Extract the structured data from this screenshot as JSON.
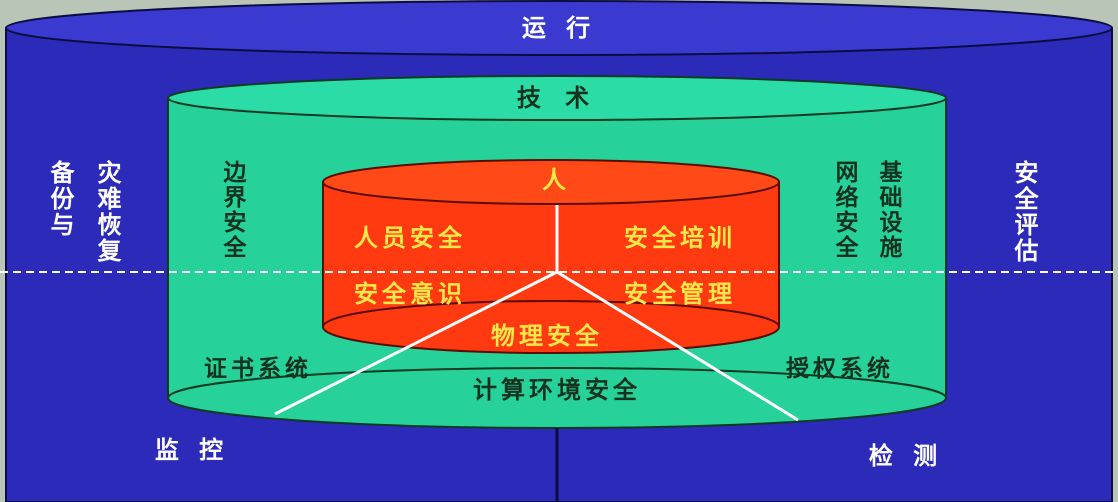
{
  "colors": {
    "outer_fill": "#2c2ab8",
    "outer_top": "#3a3ad0",
    "middle_fill": "#26d29a",
    "middle_top": "#2cdca6",
    "inner_fill": "#ff3a10",
    "inner_top": "#ff4a18",
    "line": "#ffffff",
    "text_dark": "#14321f",
    "text_yellow": "#ffe94a"
  },
  "outer": {
    "top_label": "运 行",
    "left_col1": "备份与",
    "left_col2": "灾难恢复",
    "right_col": "安全评估",
    "bottom_left": "监 控",
    "bottom_right": "检 测"
  },
  "middle": {
    "top_label": "技 术",
    "left_col": "边界安全",
    "right_col1": "网络安全",
    "right_col2": "基础设施",
    "bottom_left": "证书系统",
    "bottom_right": "授权系统",
    "bottom_center": "计算环境安全"
  },
  "inner": {
    "top_label": "人",
    "upper_left": "人员安全",
    "upper_right": "安全培训",
    "lower_left": "安全意识",
    "lower_right": "安全管理",
    "bottom_center": "物理安全"
  }
}
